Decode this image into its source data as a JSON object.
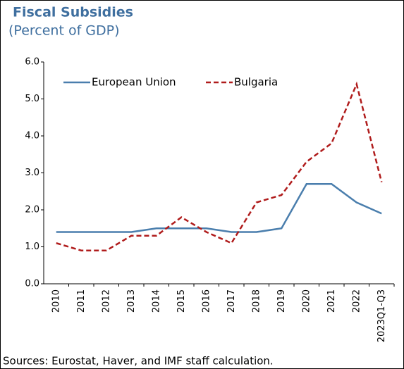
{
  "chart_data": {
    "type": "line",
    "title": "Fiscal Subsidies",
    "subtitle": "(Percent of GDP)",
    "source": "Sources: Eurostat, Haver, and IMF staff calculation.",
    "categories": [
      "2010",
      "2011",
      "2012",
      "2013",
      "2014",
      "2015",
      "2016",
      "2017",
      "2018",
      "2019",
      "2020",
      "2021",
      "2022",
      "2023Q1-Q3"
    ],
    "series": [
      {
        "name": "European Union",
        "color": "#4a7ead",
        "dash": false,
        "values": [
          1.4,
          1.4,
          1.4,
          1.4,
          1.5,
          1.5,
          1.5,
          1.4,
          1.4,
          1.5,
          2.7,
          2.7,
          2.2,
          1.9
        ]
      },
      {
        "name": "Bulgaria",
        "color": "#b01c1c",
        "dash": true,
        "values": [
          1.1,
          0.9,
          0.9,
          1.3,
          1.3,
          1.8,
          1.4,
          1.1,
          2.2,
          2.4,
          3.3,
          3.8,
          5.4,
          2.75
        ]
      }
    ],
    "ylim": [
      0,
      6
    ],
    "yticks": [
      {
        "value": 0,
        "label": "0.0"
      },
      {
        "value": 1,
        "label": "1.0"
      },
      {
        "value": 2,
        "label": "2.0"
      },
      {
        "value": 3,
        "label": "3.0"
      },
      {
        "value": 4,
        "label": "4.0"
      },
      {
        "value": 5,
        "label": "5.0"
      },
      {
        "value": 6,
        "label": "6.0"
      }
    ]
  }
}
